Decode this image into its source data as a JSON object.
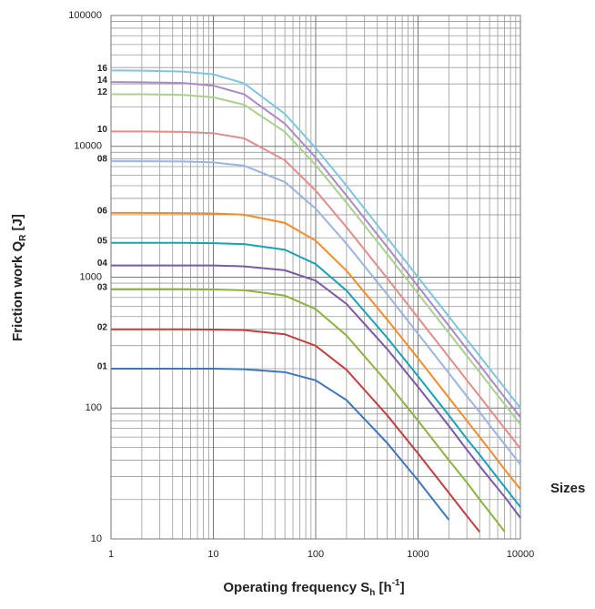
{
  "chart_data": {
    "type": "line",
    "xlabel": [
      {
        "text": "Operating frequency S"
      },
      {
        "text": "h",
        "shift": "sub"
      },
      {
        "text": " [h"
      },
      {
        "text": "-1",
        "shift": "super"
      },
      {
        "text": "]"
      }
    ],
    "ylabel": [
      {
        "text": "Friction work Q"
      },
      {
        "text": "R",
        "shift": "sub"
      },
      {
        "text": " [J]"
      }
    ],
    "legend_title": "Sizes",
    "xscale": "log",
    "yscale": "log",
    "grid": true,
    "minor_grid": true,
    "xlim": [
      1,
      10000
    ],
    "xticks": [
      1,
      10,
      100,
      1000,
      10000
    ],
    "ylim": [
      10,
      100000
    ],
    "yticks": [
      10,
      100,
      1000,
      10000,
      100000
    ],
    "x": [
      1,
      2,
      5,
      10,
      20,
      50,
      100,
      200,
      500,
      1000,
      2000,
      3000,
      4000,
      5000,
      7000,
      10000
    ],
    "series": [
      {
        "name": "16",
        "color": "#7fc6dc",
        "values": [
          38000,
          37900,
          37300,
          35500,
          30300,
          17700,
          9700,
          5000,
          2000,
          1000,
          500,
          333,
          250,
          200,
          143,
          100
        ]
      },
      {
        "name": "14",
        "color": "#a98cc6",
        "values": [
          31000,
          30900,
          30500,
          29100,
          25000,
          14900,
          8200,
          4200,
          1700,
          850,
          425,
          283,
          213,
          170,
          121,
          85
        ]
      },
      {
        "name": "12",
        "color": "#a9d18e",
        "values": [
          25000,
          25000,
          24700,
          23700,
          20800,
          12900,
          7180,
          3710,
          1500,
          750,
          375,
          250,
          188,
          150,
          107,
          75
        ]
      },
      {
        "name": "10",
        "color": "#e08d8b",
        "values": [
          13000,
          13000,
          12900,
          12600,
          11500,
          7830,
          4590,
          2410,
          980,
          490,
          245,
          163,
          123,
          98,
          70,
          49
        ]
      },
      {
        "name": "08",
        "color": "#9bb4e0",
        "values": [
          7700,
          7700,
          7660,
          7540,
          7110,
          5340,
          3340,
          1800,
          737,
          370,
          185,
          123,
          93,
          74,
          53,
          37
        ]
      },
      {
        "name": "06",
        "color": "#f28c28",
        "values": [
          3100,
          3100,
          3090,
          3070,
          3000,
          2600,
          1900,
          1120,
          474,
          240,
          120,
          80,
          60,
          48,
          34,
          24
        ]
      },
      {
        "name": "05",
        "color": "#1aa1b5",
        "values": [
          1830,
          1830,
          1830,
          1820,
          1790,
          1620,
          1260,
          790,
          344,
          175,
          88,
          58,
          44,
          35,
          25,
          17.5
        ]
      },
      {
        "name": "04",
        "color": "#7a58a6",
        "values": [
          1230,
          1230,
          1230,
          1230,
          1210,
          1130,
          940,
          625,
          282,
          145,
          73,
          48,
          36,
          29,
          21,
          14.5
        ]
      },
      {
        "name": "03",
        "color": "#8ab33f",
        "values": [
          810,
          810,
          810,
          806,
          795,
          723,
          570,
          358,
          157,
          80,
          40,
          27,
          20,
          16,
          11.4,
          null
        ]
      },
      {
        "name": "02",
        "color": "#c43c3c",
        "values": [
          400,
          400,
          400,
          398,
          394,
          366,
          299,
          196,
          88,
          45,
          22.5,
          15,
          11.3,
          null,
          null,
          null
        ]
      },
      {
        "name": "01",
        "color": "#3f77bc",
        "values": [
          200,
          200,
          200,
          200,
          198,
          188,
          163,
          115,
          54,
          28,
          14,
          null,
          null,
          null,
          null,
          null
        ]
      }
    ]
  }
}
